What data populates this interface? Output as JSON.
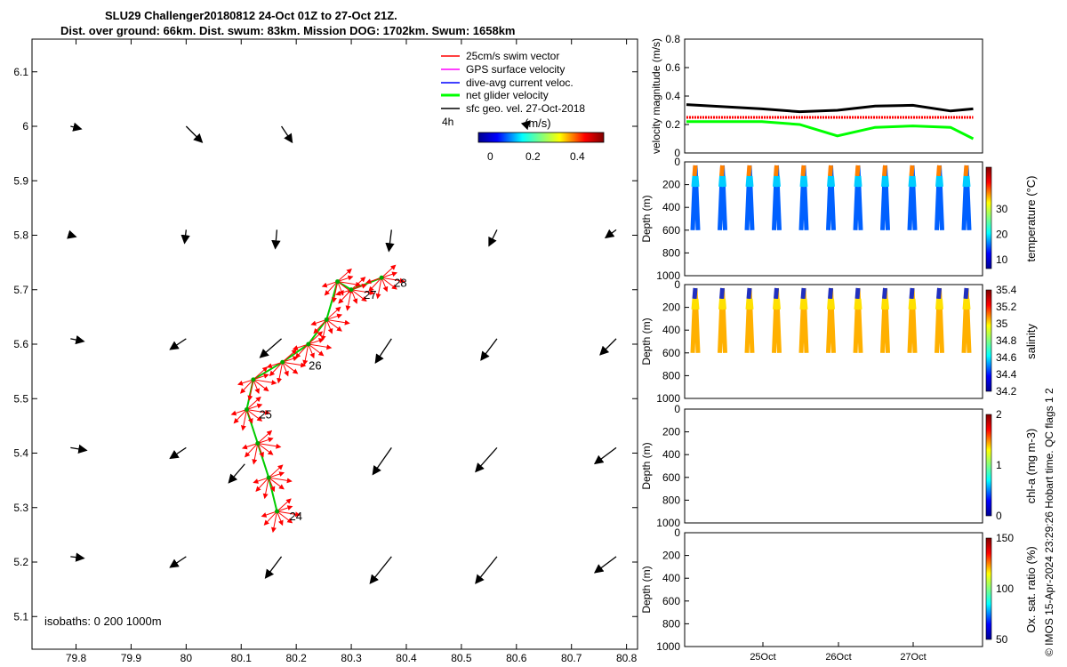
{
  "header": {
    "line1": "SLU29 Challenger20180812 24-Oct 01Z to 27-Oct 21Z.",
    "line2": "Dist. over ground: 66km. Dist. swum: 83km. Mission DOG: 1702km. Swum: 1658km"
  },
  "map": {
    "xticks": [
      "79.8",
      "79.9",
      "80",
      "80.1",
      "80.2",
      "80.3",
      "80.4",
      "80.5",
      "80.6",
      "80.7",
      "80.8"
    ],
    "yticks": [
      "5.1",
      "5.2",
      "5.3",
      "5.4",
      "5.5",
      "5.6",
      "5.7",
      "5.8",
      "5.9",
      "6",
      "6.1"
    ],
    "isobaths_text": "isobaths: 0   200  1000m",
    "legend": [
      {
        "label": "25cm/s swim vector",
        "color": "#ff0000"
      },
      {
        "label": "GPS surface velocity",
        "color": "#ff00ff"
      },
      {
        "label": "dive-avg current veloc.",
        "color": "#0000ff"
      },
      {
        "label": "net glider velocity",
        "color": "#00ff00"
      },
      {
        "label": "sfc geo. vel. 27-Oct-2018",
        "color": "#000000"
      }
    ],
    "legend_extra": "4h",
    "colorbar_title": "(m/s)",
    "colorbar_ticks": [
      "0",
      "0.2",
      "0.4"
    ],
    "day_labels": [
      "24",
      "25",
      "26",
      "27",
      "28"
    ]
  },
  "right": {
    "velocity_ylabel": "velocity magnitude (m/s)",
    "velocity_ticks": [
      "0",
      "0.2",
      "0.4",
      "0.6",
      "0.8"
    ],
    "depth_ylabel": "Depth (m)",
    "depth_ticks": [
      "0",
      "200",
      "400",
      "600",
      "800",
      "1000"
    ],
    "panels": [
      {
        "cbar_label": "temperature (°C)",
        "cbar_ticks": [
          "10",
          "20",
          "30"
        ]
      },
      {
        "cbar_label": "salinity",
        "cbar_ticks": [
          "34.2",
          "34.4",
          "34.6",
          "34.8",
          "35",
          "35.2",
          "35.4"
        ]
      },
      {
        "cbar_label": "chl-a (mg m-3)",
        "cbar_ticks": [
          "0",
          "1",
          "2"
        ]
      },
      {
        "cbar_label": "Ox. sat. ratio (%)",
        "cbar_ticks": [
          "50",
          "100",
          "150"
        ]
      }
    ],
    "xticks": [
      "25Oct",
      "26Oct",
      "27Oct"
    ]
  },
  "footer_vertical": "© IMOS 15-Apr-2024 23:29:26 Hobart time. QC flags 1  2",
  "chart_data": [
    {
      "type": "scatter",
      "title": "SLU29 Challenger20180812 24-Oct 01Z to 27-Oct 21Z.",
      "xlabel": "",
      "ylabel": "",
      "xlim": [
        79.72,
        80.82
      ],
      "ylim": [
        5.04,
        6.16
      ],
      "series": [
        {
          "values": [
            [
              80.165,
              5.293
            ],
            [
              80.15,
              5.355
            ],
            [
              80.13,
              5.418
            ],
            [
              80.11,
              5.48
            ],
            [
              80.122,
              5.535
            ],
            [
              80.175,
              5.567
            ],
            [
              80.222,
              5.6
            ],
            [
              80.255,
              5.645
            ],
            [
              80.275,
              5.715
            ],
            [
              80.3,
              5.7
            ],
            [
              80.355,
              5.722
            ]
          ]
        }
      ],
      "day_markers": [
        {
          "label": "24",
          "x": 80.165,
          "y": 5.293
        },
        {
          "label": "25",
          "x": 80.11,
          "y": 5.48
        },
        {
          "label": "26",
          "x": 80.2,
          "y": 5.57
        },
        {
          "label": "27",
          "x": 80.3,
          "y": 5.7
        },
        {
          "label": "28",
          "x": 80.355,
          "y": 5.722
        }
      ]
    },
    {
      "type": "line",
      "ylabel": "velocity magnitude (m/s)",
      "ylim": [
        0,
        0.8
      ],
      "x_days": [
        0.0,
        0.5,
        1.0,
        1.5,
        2.0,
        2.5,
        3.0,
        3.5,
        3.8
      ],
      "series": [
        {
          "values": [
            0.34,
            0.325,
            0.31,
            0.29,
            0.3,
            0.33,
            0.335,
            0.295,
            0.31
          ]
        },
        {
          "values": [
            0.22,
            0.22,
            0.22,
            0.2,
            0.12,
            0.18,
            0.19,
            0.18,
            0.1
          ]
        },
        {
          "values": [
            0.25,
            0.25,
            0.25,
            0.25,
            0.25,
            0.25,
            0.25,
            0.25,
            0.25
          ]
        }
      ]
    },
    {
      "type": "scatter",
      "ylabel": "Depth (m)",
      "ylim": [
        1000,
        0
      ],
      "profile_count": 11,
      "max_depth": 600,
      "x_ticks": [
        "25Oct",
        "26Oct",
        "27Oct"
      ]
    }
  ]
}
